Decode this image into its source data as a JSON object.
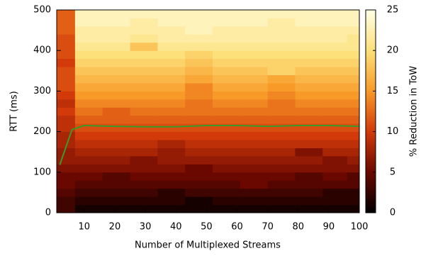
{
  "chart_data": {
    "type": "heatmap",
    "xlabel": "Number of Multiplexed Streams",
    "ylabel": "RTT (ms)",
    "colorbar_label": "% Reduction in ToW",
    "xlim": [
      1,
      100
    ],
    "xticks": [
      10,
      20,
      30,
      40,
      50,
      60,
      70,
      80,
      90,
      100
    ],
    "ylim": [
      0,
      500
    ],
    "yticks": [
      0,
      100,
      200,
      300,
      400,
      500
    ],
    "zlim": [
      0,
      25
    ],
    "zticks": [
      0,
      5,
      10,
      15,
      20,
      25
    ],
    "colormap": [
      "#000000",
      "#6a0800",
      "#d23a0a",
      "#f89a28",
      "#fde07a",
      "#ffffe6"
    ],
    "x_edges": [
      1,
      7,
      16,
      25,
      34,
      43,
      52,
      61,
      70,
      79,
      88,
      96,
      100
    ],
    "y_edges": [
      0,
      20,
      40,
      60,
      80,
      100,
      120,
      140,
      160,
      180,
      200,
      220,
      240,
      260,
      280,
      300,
      320,
      340,
      360,
      380,
      400,
      420,
      440,
      460,
      480,
      500
    ],
    "z": [
      [
        3,
        1,
        1,
        1,
        1,
        1,
        1,
        1,
        1,
        1,
        1,
        1
      ],
      [
        3,
        2,
        2,
        2,
        2,
        1,
        2,
        2,
        2,
        2,
        2,
        2
      ],
      [
        4,
        3,
        3,
        3,
        2,
        3,
        3,
        3,
        3,
        3,
        2,
        2
      ],
      [
        5,
        4,
        4,
        4,
        4,
        4,
        4,
        5,
        4,
        4,
        4,
        4
      ],
      [
        5,
        5,
        4,
        5,
        5,
        5,
        5,
        5,
        5,
        4,
        5,
        4
      ],
      [
        6,
        6,
        6,
        6,
        6,
        5,
        6,
        6,
        6,
        6,
        6,
        6
      ],
      [
        7,
        7,
        7,
        6,
        7,
        7,
        7,
        7,
        7,
        7,
        6,
        7
      ],
      [
        7,
        8,
        8,
        8,
        7,
        8,
        8,
        8,
        8,
        6,
        8,
        8
      ],
      [
        8,
        9,
        9,
        9,
        8,
        9,
        9,
        9,
        9,
        9,
        9,
        9
      ],
      [
        8,
        10,
        10,
        10,
        10,
        10,
        10,
        10,
        10,
        10,
        10,
        10
      ],
      [
        9,
        11,
        11,
        11,
        11,
        11,
        11,
        11,
        11,
        11,
        11,
        11
      ],
      [
        9,
        12,
        12,
        12,
        12,
        12,
        12,
        12,
        12,
        12,
        12,
        12
      ],
      [
        10,
        13,
        12,
        13,
        13,
        13,
        13,
        13,
        13,
        13,
        13,
        13
      ],
      [
        9,
        14,
        14,
        14,
        14,
        13,
        14,
        14,
        13,
        14,
        14,
        14
      ],
      [
        10,
        15,
        15,
        15,
        15,
        14,
        15,
        15,
        14,
        15,
        15,
        15
      ],
      [
        11,
        16,
        16,
        16,
        16,
        14,
        16,
        16,
        15,
        16,
        16,
        16
      ],
      [
        11,
        17,
        17,
        17,
        17,
        16,
        17,
        17,
        16,
        17,
        17,
        17
      ],
      [
        11,
        18,
        18,
        18,
        18,
        17,
        18,
        18,
        19,
        18,
        18,
        18
      ],
      [
        10,
        19,
        19,
        19,
        19,
        18,
        19,
        19,
        19,
        19,
        19,
        19
      ],
      [
        11,
        20,
        20,
        20,
        20,
        19,
        20,
        20,
        20,
        20,
        20,
        20
      ],
      [
        11,
        21,
        21,
        18,
        21,
        21,
        21,
        21,
        21,
        21,
        21,
        21
      ],
      [
        11,
        22,
        22,
        21,
        22,
        22,
        22,
        22,
        22,
        22,
        22,
        21
      ],
      [
        12,
        22,
        22,
        22,
        22,
        23,
        22,
        22,
        22,
        22,
        22,
        22
      ],
      [
        12,
        23,
        23,
        22,
        23,
        23,
        23,
        23,
        22,
        23,
        23,
        23
      ],
      [
        12,
        23,
        23,
        23,
        23,
        23,
        23,
        23,
        23,
        23,
        23,
        23
      ]
    ],
    "line": {
      "color": "#3a9a2a",
      "x": [
        2,
        6,
        10,
        20,
        30,
        40,
        50,
        60,
        70,
        80,
        90,
        100
      ],
      "y": [
        118,
        205,
        215,
        213,
        212,
        212,
        215,
        215,
        213,
        215,
        215,
        213
      ]
    }
  }
}
